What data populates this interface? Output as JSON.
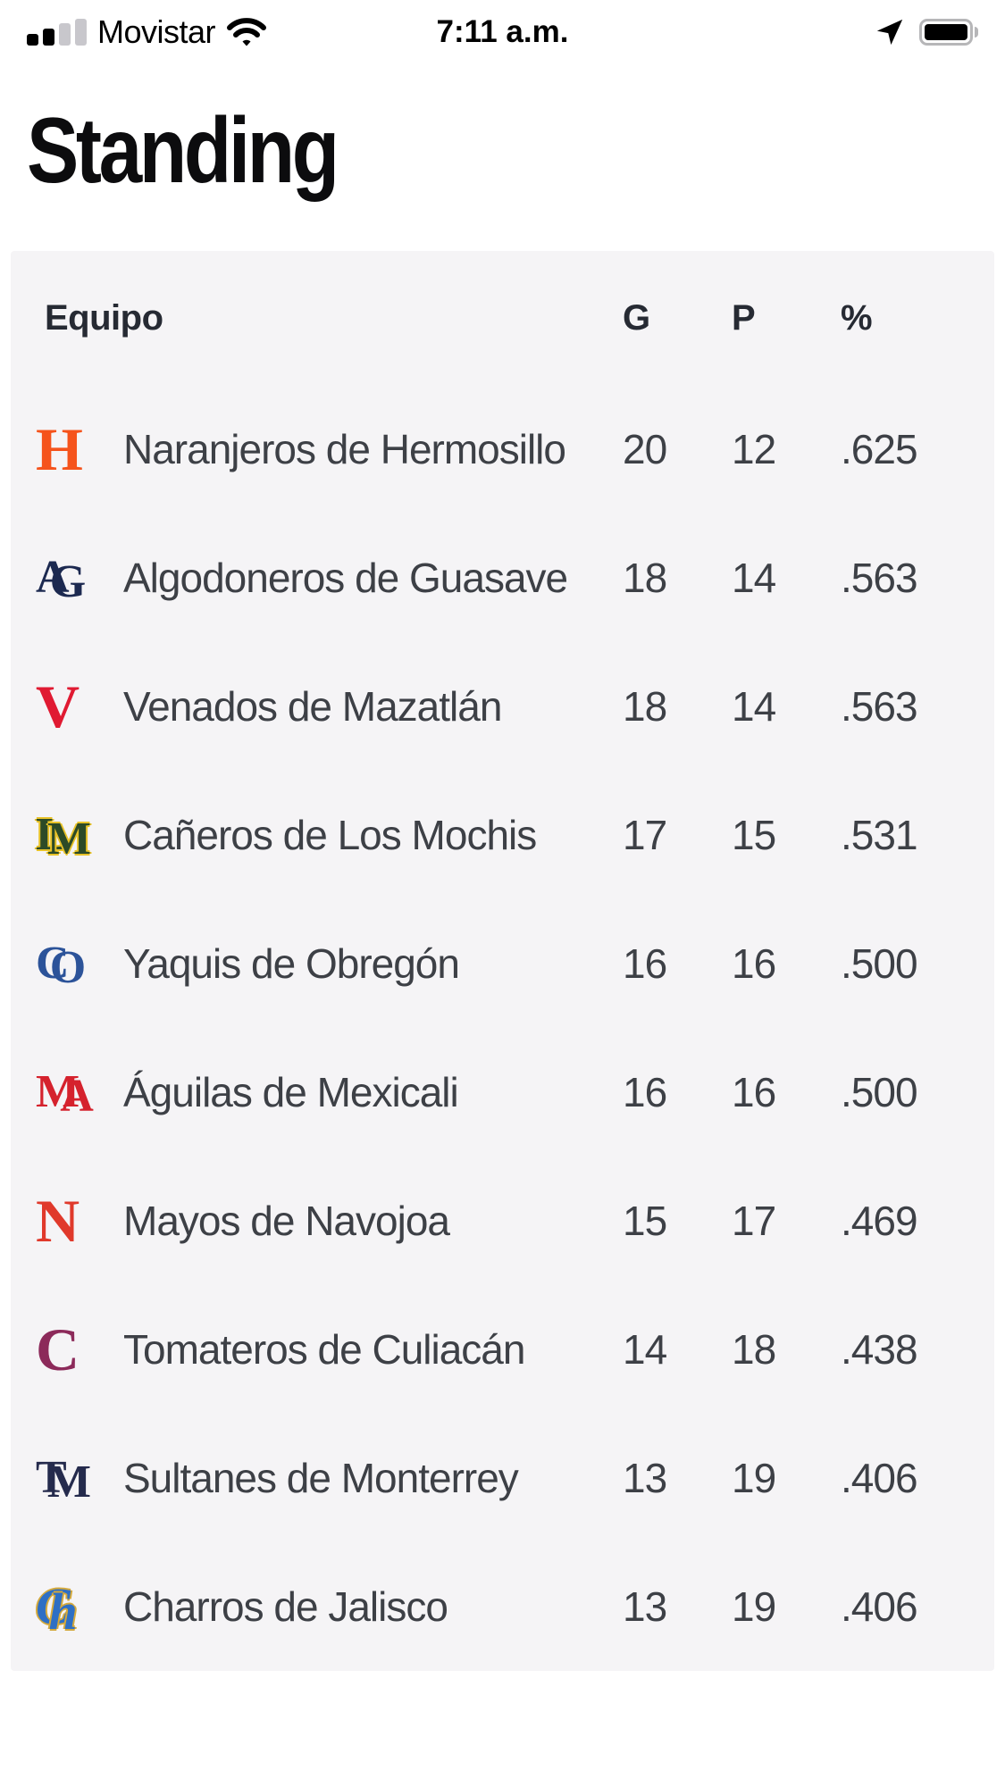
{
  "status_bar": {
    "carrier": "Movistar",
    "time": "7:11 a.m.",
    "icons": [
      "cellular-signal-icon",
      "wifi-icon",
      "location-arrow-icon",
      "battery-icon"
    ],
    "battery_level_percent": 100
  },
  "page": {
    "title": "Standing"
  },
  "colors": {
    "page_background": "#ffffff",
    "card_background": "#f5f4f6",
    "title_text": "#0c0c0e",
    "header_text": "#262a33",
    "row_text": "#3d4046"
  },
  "table": {
    "headers": {
      "team": "Equipo",
      "wins": "G",
      "losses": "P",
      "pct": "%"
    },
    "rows": [
      {
        "team": "Naranjeros de Hermosillo",
        "g": "20",
        "p": "12",
        "pct": ".625",
        "logo": {
          "text": "H",
          "color": "#f5531c",
          "font": "slab"
        }
      },
      {
        "team": "Algodoneros de Guasave",
        "g": "18",
        "p": "14",
        "pct": ".563",
        "logo": {
          "text": "AG",
          "color": "#1c2950",
          "font": "slab"
        }
      },
      {
        "team": "Venados de Mazatlán",
        "g": "18",
        "p": "14",
        "pct": ".563",
        "logo": {
          "text": "V",
          "color": "#e01a32",
          "font": "slab"
        }
      },
      {
        "team": "Cañeros de Los Mochis",
        "g": "17",
        "p": "15",
        "pct": ".531",
        "logo": {
          "text": "LM",
          "color": "#2c4a27",
          "outline": "#e8c229",
          "font": "slab"
        }
      },
      {
        "team": "Yaquis de Obregón",
        "g": "16",
        "p": "16",
        "pct": ".500",
        "logo": {
          "text": "CO",
          "color": "#2c5399",
          "font": "slab"
        }
      },
      {
        "team": "Águilas de Mexicali",
        "g": "16",
        "p": "16",
        "pct": ".500",
        "logo": {
          "text": "MA",
          "color": "#d5222d",
          "font": "slab"
        }
      },
      {
        "team": "Mayos de Navojoa",
        "g": "15",
        "p": "17",
        "pct": ".469",
        "logo": {
          "text": "N",
          "color": "#e0392b",
          "font": "slab"
        }
      },
      {
        "team": "Tomateros de Culiacán",
        "g": "14",
        "p": "18",
        "pct": ".438",
        "logo": {
          "text": "C",
          "color": "#8c2a5a",
          "font": "slab"
        }
      },
      {
        "team": "Sultanes de Monterrey",
        "g": "13",
        "p": "19",
        "pct": ".406",
        "logo": {
          "text": "TM",
          "color": "#252b4d",
          "font": "slab"
        }
      },
      {
        "team": "Charros de Jalisco",
        "g": "13",
        "p": "19",
        "pct": ".406",
        "logo": {
          "text": "Ch",
          "color": "#2e6fc4",
          "outline": "#d4a93c",
          "font": "script",
          "ball": true
        }
      }
    ]
  }
}
